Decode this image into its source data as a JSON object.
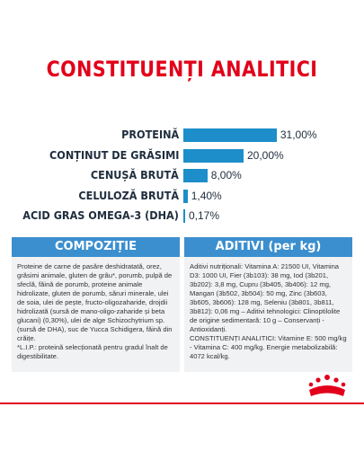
{
  "title": "CONSTITUENȚI ANALITICI",
  "colors": {
    "accent_red": "#e2001a",
    "bar_blue": "#1d8ec9",
    "header_blue": "#3b8fce"
  },
  "chart_data": {
    "type": "bar",
    "orientation": "horizontal",
    "categories": [
      "PROTEINĂ",
      "CONȚINUT DE GRĂSIMI",
      "CENUȘĂ BRUTĂ",
      "CELULOZĂ BRUTĂ",
      "ACID GRAS OMEGA-3 (DHA)"
    ],
    "values": [
      31.0,
      20.0,
      8.0,
      1.4,
      0.17
    ],
    "value_labels": [
      "31,00%",
      "20,00%",
      "8,00%",
      "1,40%",
      "0,17%"
    ],
    "unit": "%"
  },
  "composition": {
    "header": "COMPOZIȚIE",
    "text": "Proteine de carne de pasăre deshidratată, orez, grăsimi animale, gluten de grâu*, porumb, pulpă de sfeclă, făină de porumb, proteine animale hidrolizate, gluten de porumb, săruri minerale, ulei de soia, ulei de pește, fructo-oligozaharide, drojdii hidrolizată (sursă de mano-oligo-zaharide și beta glucani) (0,30%), ulei de alge Schizochytrium sp. (sursă de DHA), suc de Yucca Schidigera, făină din crăițe.\n*L.I.P.: proteină selecționată pentru gradul înalt de digestibilitate."
  },
  "additives": {
    "header": "ADITIVI (per kg)",
    "text": "Aditivi nutriționali: Vitamina A: 21500 UI, Vitamina D3: 1000 UI, Fier (3b103): 38 mg, Iod (3b201, 3b202): 3,8 mg, Cupru (3b405, 3b406): 12 mg, Mangan (3b502, 3b504): 50 mg, Zinc (3b603, 3b605, 3b606): 128 mg, Seleniu (3b801, 3b811, 3b812): 0,06 mg – Aditivi tehnologici: Clinoptilolite de origine sedimentară: 10 g – Conservanți - Antioxidanți.\nCONSTITUENȚI ANALITICI: Vitamine E: 500 mg/kg - Vitamina C: 400 mg/kg. Energie metabolizabilă: 4072 kcal/kg."
  },
  "logo": {
    "name": "royal-canin-crown-logo"
  }
}
